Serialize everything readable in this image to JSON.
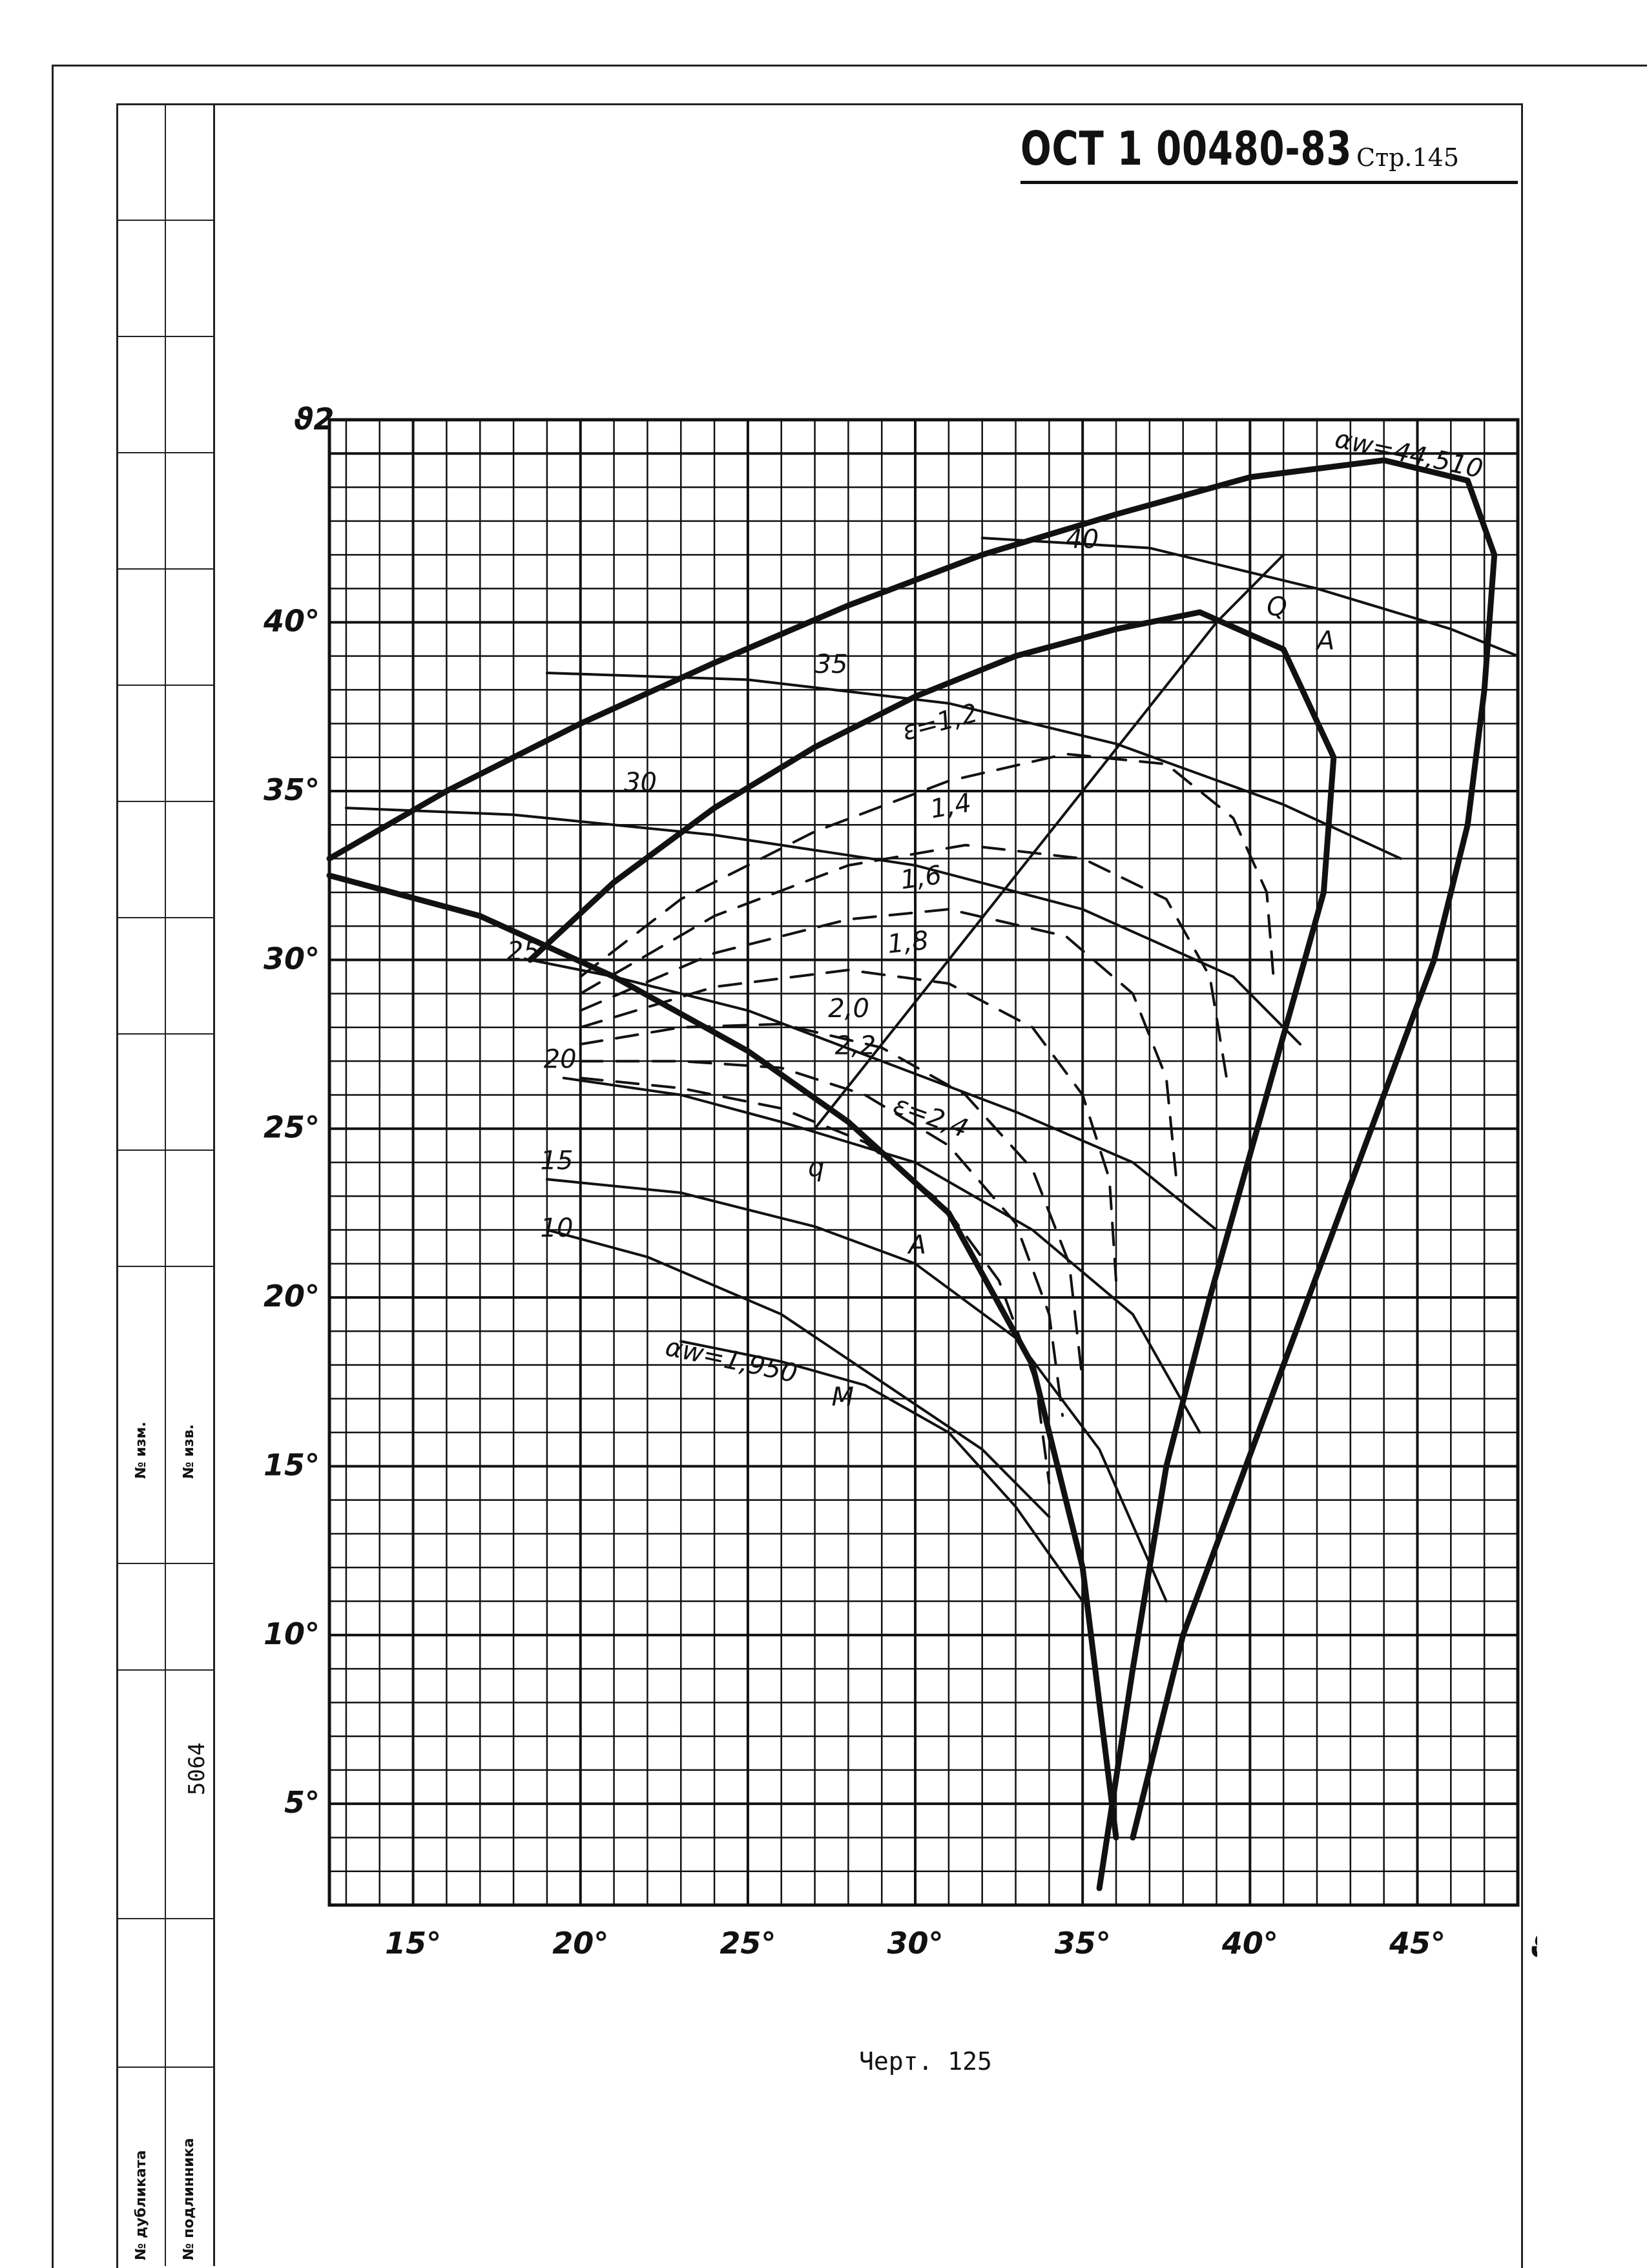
{
  "header": {
    "doc_code": "ОСТ 1 00480-83",
    "page": "Стр.145"
  },
  "side_stamp": {
    "inv_number": "5064",
    "label_change": "№ изм.",
    "label_change2": "№ изв.",
    "label_duplicate": "№ дубликата",
    "label_original": "№ подлинника"
  },
  "caption": "Черт. 125",
  "chart_data": {
    "type": "line",
    "title": "",
    "xlabel": "ϑ1",
    "ylabel": "ϑ2",
    "xlim": [
      12.5,
      48
    ],
    "ylim": [
      2,
      46
    ],
    "x_ticks": [
      "15°",
      "20°",
      "25°",
      "30°",
      "35°",
      "40°",
      "45°"
    ],
    "y_ticks": [
      "5°",
      "10°",
      "15°",
      "20°",
      "25°",
      "30°",
      "35°",
      "40°"
    ],
    "grid": true,
    "annotations": {
      "alpha_w_max": "αw=44,510",
      "alpha_w_min": "αw=1,950",
      "point_M": "M",
      "point_q": "q",
      "point_Q": "Q",
      "point_A_upper": "A",
      "point_A_lower": "A",
      "z_labels": [
        "10",
        "15",
        "20",
        "25",
        "30",
        "35",
        "40"
      ],
      "eps_labels": [
        "ε=1,2",
        "1,4",
        "1,6",
        "1,8",
        "2,0",
        "2,2",
        "ε=2,4"
      ]
    },
    "series": [
      {
        "label": "10",
        "style": "thin",
        "x": [
          19,
          22,
          26,
          29,
          32,
          34
        ],
        "y": [
          22,
          21.2,
          19.5,
          17.5,
          15.5,
          13.5
        ]
      },
      {
        "label": "15",
        "style": "thin",
        "x": [
          19,
          23,
          27,
          30,
          33,
          35.5,
          37.5
        ],
        "y": [
          23.5,
          23.1,
          22.1,
          21,
          18.8,
          15.5,
          11
        ]
      },
      {
        "label": "20",
        "style": "thin",
        "x": [
          19.5,
          23,
          26,
          30,
          33.5,
          36.5,
          38.5
        ],
        "y": [
          26.5,
          26,
          25.2,
          24,
          22,
          19.5,
          16
        ]
      },
      {
        "label": "25",
        "style": "thin",
        "x": [
          18.5,
          21,
          25,
          29,
          33,
          36.5,
          39
        ],
        "y": [
          30,
          29.5,
          28.5,
          27,
          25.5,
          24,
          22
        ]
      },
      {
        "label": "30",
        "style": "thin",
        "x": [
          13,
          18,
          24,
          30,
          35,
          39.5,
          41.5
        ],
        "y": [
          34.5,
          34.3,
          33.7,
          32.8,
          31.5,
          29.5,
          27.5
        ]
      },
      {
        "label": "35",
        "style": "thin",
        "x": [
          19,
          25,
          31,
          36,
          41,
          44.5
        ],
        "y": [
          38.5,
          38.3,
          37.6,
          36.4,
          34.6,
          33
        ]
      },
      {
        "label": "40",
        "style": "thin",
        "x": [
          32,
          37,
          42,
          46,
          48
        ],
        "y": [
          42.5,
          42.2,
          41,
          39.8,
          39
        ]
      },
      {
        "label": "alpha_w_max",
        "style": "thick",
        "x": [
          12.5,
          16,
          20,
          24,
          28,
          32,
          36,
          40,
          44,
          46.5,
          47.3,
          47,
          46.5
        ],
        "y": [
          33,
          35,
          37,
          38.8,
          40.5,
          42,
          43.2,
          44.3,
          44.8,
          44.2,
          42,
          38,
          34
        ]
      },
      {
        "label": "alpha_w_max_right",
        "style": "thick",
        "x": [
          46.5,
          45.5,
          44,
          42.5,
          41,
          39.5,
          38,
          36.5
        ],
        "y": [
          34,
          30,
          26,
          22,
          18,
          14,
          10,
          4
        ]
      },
      {
        "label": "Q_curve",
        "style": "thick",
        "x": [
          18.5,
          21,
          24,
          27,
          30,
          33,
          36,
          38.5,
          41,
          42.5,
          42.2,
          40.5,
          38.8,
          37.5,
          36.5,
          35.5
        ],
        "y": [
          30,
          32.3,
          34.5,
          36.3,
          37.8,
          39,
          39.8,
          40.3,
          39.2,
          36,
          32,
          26,
          20,
          15,
          9,
          2.5
        ]
      },
      {
        "label": "M_curve",
        "style": "thick",
        "x": [
          12.5,
          17,
          21,
          25,
          28,
          31,
          33.5,
          35,
          36
        ],
        "y": [
          32.5,
          31.3,
          29.5,
          27.3,
          25.2,
          22.5,
          18,
          12,
          4
        ]
      },
      {
        "label": "alpha_w_min",
        "style": "thin",
        "x": [
          23,
          26,
          28.5,
          31,
          33,
          35
        ],
        "y": [
          18.7,
          18.1,
          17.4,
          16,
          13.8,
          11
        ]
      },
      {
        "label": "eps_1_2",
        "style": "dashed",
        "x": [
          20,
          23,
          27,
          31,
          34.5,
          37.5,
          39.5,
          40.5,
          40.7
        ],
        "y": [
          29.5,
          31.8,
          33.8,
          35.3,
          36.1,
          35.8,
          34.2,
          32,
          29.5
        ]
      },
      {
        "label": "eps_1_4",
        "style": "dashed",
        "x": [
          20,
          24,
          28,
          31.5,
          35,
          37.5,
          38.8,
          39.3
        ],
        "y": [
          29,
          31.3,
          32.8,
          33.4,
          33,
          31.8,
          29.5,
          26.5
        ]
      },
      {
        "label": "eps_1_6",
        "style": "dashed",
        "x": [
          20,
          24,
          28,
          31,
          34.5,
          36.5,
          37.5,
          37.8
        ],
        "y": [
          28.5,
          30.2,
          31.2,
          31.5,
          30.7,
          29,
          26.5,
          23.5
        ]
      },
      {
        "label": "eps_1_8",
        "style": "dashed",
        "x": [
          20,
          24,
          28,
          31,
          33.5,
          35,
          35.8,
          36
        ],
        "y": [
          28,
          29.2,
          29.7,
          29.3,
          28,
          26,
          23.5,
          20.5
        ]
      },
      {
        "label": "eps_2_0",
        "style": "dashed",
        "x": [
          20,
          23,
          26,
          29,
          31.5,
          33.5,
          34.6,
          35
        ],
        "y": [
          27.5,
          28,
          28.1,
          27.4,
          26,
          23.8,
          21,
          17.5
        ]
      },
      {
        "label": "eps_2_2",
        "style": "dashed",
        "x": [
          20,
          23,
          26,
          28.5,
          31,
          33,
          34,
          34.4
        ],
        "y": [
          27,
          27,
          26.8,
          26,
          24.5,
          22.2,
          19.5,
          16.5
        ]
      },
      {
        "label": "eps_2_4",
        "style": "dashed",
        "x": [
          20,
          23,
          26,
          28.5,
          30.8,
          32.5,
          33.6,
          34
        ],
        "y": [
          26.5,
          26.2,
          25.6,
          24.6,
          22.8,
          20.5,
          17.5,
          14.5
        ]
      },
      {
        "label": "q_Q_line",
        "style": "thin",
        "x": [
          27,
          29,
          31,
          33,
          35,
          37,
          39,
          41
        ],
        "y": [
          25,
          27.5,
          30,
          32.5,
          35,
          37.5,
          40,
          42
        ]
      }
    ]
  }
}
